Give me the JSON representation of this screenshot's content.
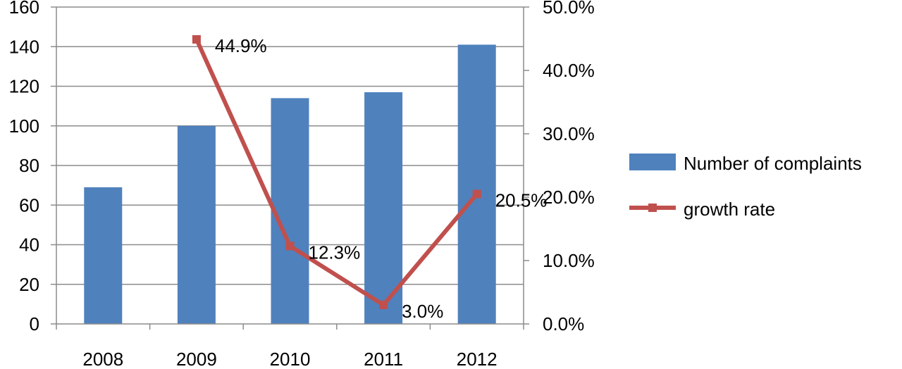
{
  "chart_data": {
    "type": "bar",
    "categories": [
      "2008",
      "2009",
      "2010",
      "2011",
      "2012"
    ],
    "series": [
      {
        "name": "Number of complaints",
        "type": "bar",
        "axis": "left",
        "color": "#4F81BD",
        "values": [
          69,
          100,
          114,
          117,
          141
        ]
      },
      {
        "name": "growth rate",
        "type": "line",
        "axis": "right",
        "color": "#C0504D",
        "marker": "square",
        "values": [
          null,
          44.9,
          12.3,
          3.0,
          20.5
        ],
        "data_labels": [
          "",
          "44.9%",
          "12.3%",
          "3.0%",
          "20.5%"
        ]
      }
    ],
    "y_left": {
      "ylim": [
        0,
        160
      ],
      "ticks": [
        0,
        20,
        40,
        60,
        80,
        100,
        120,
        140,
        160
      ],
      "tick_labels": [
        "0",
        "20",
        "40",
        "60",
        "80",
        "100",
        "120",
        "140",
        "160"
      ]
    },
    "y_right": {
      "ylim": [
        0,
        50
      ],
      "ticks": [
        0,
        10,
        20,
        30,
        40,
        50
      ],
      "tick_labels": [
        "0.0%",
        "10.0%",
        "20.0%",
        "30.0%",
        "40.0%",
        "50.0%"
      ]
    },
    "grid": true,
    "legend_position": "right"
  }
}
